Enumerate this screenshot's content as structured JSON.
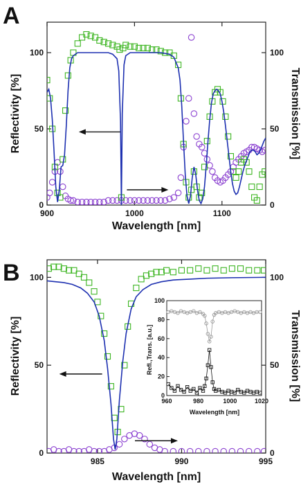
{
  "chart_data": [
    {
      "panel": "A",
      "type": "line",
      "xlabel": "Wavelength [nm]",
      "ylabel_left": "Reflectivity [%]",
      "ylabel_right": "Transmission [%]",
      "xlim": [
        900,
        1150
      ],
      "ylim": [
        0,
        120
      ],
      "xticks": [
        900,
        1000,
        1100
      ],
      "yticks_left": [
        0,
        50,
        100
      ],
      "yticks_right": [
        0,
        50,
        100
      ],
      "colors": {
        "reflectivity_measured": "#3cb521",
        "transmission_measured": "#8a3fd0",
        "reflectivity_simulated": "#1c2fb0"
      },
      "series": [
        {
          "role": "reflectivity_measured",
          "marker": "square",
          "x": [
            900,
            903,
            906,
            909,
            912,
            915,
            918,
            921,
            924,
            927,
            930,
            935,
            940,
            945,
            950,
            955,
            960,
            965,
            970,
            975,
            980,
            983,
            985,
            987,
            990,
            995,
            1000,
            1005,
            1010,
            1015,
            1020,
            1025,
            1030,
            1035,
            1040,
            1045,
            1050,
            1053,
            1056,
            1059,
            1062,
            1065,
            1068,
            1071,
            1074,
            1077,
            1080,
            1083,
            1086,
            1089,
            1092,
            1095,
            1098,
            1101,
            1104,
            1107,
            1110,
            1113,
            1116,
            1119,
            1122,
            1125,
            1128,
            1131,
            1134,
            1137,
            1140,
            1143,
            1146,
            1149
          ],
          "y": [
            82,
            70,
            50,
            25,
            8,
            5,
            30,
            62,
            85,
            95,
            100,
            106,
            110,
            112,
            111,
            110,
            108,
            107,
            106,
            105,
            104,
            102,
            5,
            103,
            105,
            104,
            104,
            103,
            103,
            103,
            102,
            102,
            101,
            100,
            100,
            98,
            92,
            70,
            40,
            15,
            5,
            10,
            22,
            12,
            5,
            8,
            25,
            42,
            58,
            68,
            74,
            76,
            74,
            68,
            58,
            45,
            32,
            22,
            18,
            22,
            28,
            30,
            28,
            22,
            12,
            5,
            3,
            12,
            20,
            22
          ]
        },
        {
          "role": "transmission_measured",
          "marker": "circle",
          "x": [
            900,
            903,
            906,
            909,
            912,
            915,
            918,
            921,
            924,
            927,
            930,
            935,
            940,
            945,
            950,
            955,
            960,
            965,
            970,
            975,
            980,
            985,
            990,
            995,
            1000,
            1005,
            1010,
            1015,
            1020,
            1025,
            1030,
            1035,
            1040,
            1045,
            1050,
            1053,
            1056,
            1059,
            1062,
            1065,
            1068,
            1071,
            1074,
            1077,
            1080,
            1083,
            1086,
            1089,
            1092,
            1095,
            1098,
            1101,
            1104,
            1107,
            1110,
            1113,
            1116,
            1119,
            1122,
            1125,
            1128,
            1131,
            1134,
            1137,
            1140,
            1143,
            1146,
            1149
          ],
          "y": [
            5,
            8,
            15,
            22,
            28,
            22,
            12,
            6,
            4,
            3,
            3,
            2,
            2,
            2,
            2,
            2,
            2,
            2,
            3,
            3,
            3,
            3,
            3,
            3,
            3,
            3,
            3,
            3,
            3,
            3,
            3,
            3,
            4,
            5,
            8,
            18,
            38,
            55,
            70,
            110,
            60,
            45,
            40,
            38,
            34,
            30,
            26,
            22,
            18,
            16,
            15,
            16,
            18,
            20,
            22,
            25,
            28,
            30,
            32,
            34,
            35,
            36,
            38,
            38,
            37,
            36,
            35,
            36
          ]
        },
        {
          "role": "reflectivity_simulated",
          "marker": "line",
          "x": [
            900,
            902,
            904,
            906,
            908,
            910,
            912,
            914,
            916,
            918,
            920,
            922,
            924,
            926,
            928,
            930,
            935,
            940,
            950,
            960,
            970,
            975,
            980,
            982,
            984,
            985,
            986,
            988,
            990,
            995,
            1000,
            1010,
            1020,
            1030,
            1040,
            1045,
            1050,
            1052,
            1054,
            1056,
            1058,
            1060,
            1062,
            1064,
            1066,
            1068,
            1070,
            1072,
            1074,
            1076,
            1078,
            1080,
            1082,
            1084,
            1086,
            1088,
            1090,
            1092,
            1094,
            1096,
            1098,
            1100,
            1102,
            1104,
            1106,
            1108,
            1110,
            1112,
            1114,
            1116,
            1118,
            1120,
            1122,
            1124,
            1126,
            1128,
            1130,
            1132,
            1134,
            1136,
            1138,
            1140,
            1142,
            1144,
            1146,
            1148,
            1150
          ],
          "y": [
            74,
            76,
            70,
            56,
            35,
            12,
            2,
            10,
            25,
            26,
            33,
            52,
            75,
            90,
            96,
            98,
            100,
            100,
            100,
            100,
            100,
            99,
            96,
            88,
            55,
            0,
            60,
            92,
            98,
            100,
            100,
            100,
            100,
            100,
            99,
            97,
            90,
            82,
            65,
            42,
            20,
            6,
            1,
            6,
            18,
            25,
            20,
            10,
            3,
            1,
            4,
            12,
            26,
            42,
            56,
            67,
            73,
            75,
            76,
            75,
            73,
            68,
            61,
            52,
            42,
            32,
            22,
            14,
            9,
            7,
            8,
            12,
            17,
            22,
            26,
            29,
            32,
            35,
            36,
            36,
            35,
            33,
            34,
            36,
            39,
            42,
            44
          ]
        }
      ],
      "annotations": [
        {
          "type": "arrow",
          "direction": "left",
          "points_to": "Reflectivity [%]",
          "at": [
            960,
            48
          ]
        },
        {
          "type": "arrow",
          "direction": "right",
          "points_to": "Transmission [%]",
          "at": [
            1015,
            10
          ]
        }
      ]
    },
    {
      "panel": "B",
      "type": "line",
      "xlabel": "Wavelength [nm]",
      "ylabel_left": "Reflectivity [%]",
      "ylabel_right": "Transmission [%]",
      "xlim": [
        982,
        995
      ],
      "ylim": [
        0,
        110
      ],
      "xticks": [
        985,
        990,
        995
      ],
      "yticks_left": [
        0,
        50,
        100
      ],
      "yticks_right": [
        0,
        50,
        100
      ],
      "colors": {
        "reflectivity_measured": "#3cb521",
        "transmission_measured": "#8a3fd0",
        "reflectivity_simulated": "#1c2fb0"
      },
      "series": [
        {
          "role": "reflectivity_measured",
          "marker": "square",
          "x": [
            982.1,
            982.4,
            982.7,
            983.0,
            983.3,
            983.6,
            983.9,
            984.2,
            984.5,
            984.8,
            985.0,
            985.2,
            985.4,
            985.6,
            985.8,
            986.0,
            986.2,
            986.4,
            986.6,
            986.8,
            987.0,
            987.3,
            987.6,
            987.9,
            988.2,
            988.5,
            988.8,
            989.1,
            989.5,
            990.0,
            990.5,
            991.0,
            991.5,
            992.0,
            992.5,
            993.0,
            993.5,
            994.0,
            994.5,
            994.9
          ],
          "y": [
            105,
            106,
            106,
            105,
            104,
            104,
            102,
            100,
            97,
            92,
            86,
            78,
            68,
            55,
            38,
            20,
            12,
            25,
            50,
            72,
            85,
            94,
            99,
            101,
            102,
            103,
            103,
            104,
            103,
            104,
            104,
            105,
            104,
            105,
            104,
            105,
            105,
            104,
            104,
            104
          ]
        },
        {
          "role": "transmission_measured",
          "marker": "circle",
          "x": [
            982.1,
            982.4,
            982.7,
            983.0,
            983.3,
            983.6,
            983.9,
            984.2,
            984.5,
            984.8,
            985.1,
            985.4,
            985.7,
            986.0,
            986.3,
            986.6,
            986.9,
            987.2,
            987.5,
            987.8,
            988.1,
            988.4,
            988.7,
            989.0,
            989.5,
            990.0,
            990.5,
            991.0,
            991.5,
            992.0,
            992.5,
            993.0,
            993.5,
            994.0,
            994.5,
            994.9
          ],
          "y": [
            1,
            2,
            1,
            1,
            2,
            1,
            1,
            1,
            2,
            1,
            1,
            1,
            2,
            3,
            5,
            8,
            10,
            11,
            10,
            8,
            5,
            3,
            2,
            1,
            1,
            1,
            1,
            1,
            1,
            1,
            1,
            1,
            1,
            1,
            1,
            1
          ]
        },
        {
          "role": "reflectivity_simulated",
          "marker": "line",
          "x": [
            982.0,
            982.5,
            983.0,
            983.5,
            984.0,
            984.4,
            984.8,
            985.1,
            985.4,
            985.6,
            985.8,
            985.95,
            986.05,
            986.15,
            986.3,
            986.5,
            986.7,
            987.0,
            987.3,
            987.7,
            988.2,
            988.8,
            989.5,
            990.5,
            991.5,
            993.0,
            995.0
          ],
          "y": [
            98,
            97.5,
            97,
            96,
            94,
            91,
            86,
            78,
            64,
            48,
            28,
            8,
            2,
            8,
            30,
            52,
            68,
            82,
            89,
            93,
            96,
            97.5,
            98.5,
            99,
            99.5,
            99.8,
            100
          ]
        }
      ],
      "annotations": [
        {
          "type": "arrow",
          "direction": "left",
          "points_to": "Reflectivity [%]",
          "at": [
            984,
            45
          ]
        },
        {
          "type": "arrow",
          "direction": "right",
          "points_to": "Transmission [%]",
          "at": [
            988.5,
            7
          ]
        }
      ],
      "inset": {
        "type": "scatter",
        "xlabel": "Wavelength [nm]",
        "ylabel": "Refl.,Trans. [a.u.]",
        "xlim": [
          960,
          1020
        ],
        "ylim": [
          0,
          100
        ],
        "xticks": [
          960,
          980,
          1000,
          1020
        ],
        "yticks": [
          0,
          20,
          40,
          60,
          80,
          100
        ],
        "series": [
          {
            "role": "reflection",
            "marker": "circle",
            "color": "#9a9a9a",
            "x": [
              961,
              963,
              965,
              967,
              969,
              971,
              973,
              975,
              977,
              979,
              981,
              983,
              984,
              985,
              986,
              987,
              988,
              989,
              990,
              991,
              993,
              995,
              997,
              999,
              1001,
              1003,
              1005,
              1007,
              1009,
              1011,
              1013,
              1015,
              1017,
              1019
            ],
            "y": [
              88,
              89,
              88,
              87,
              89,
              88,
              87,
              88,
              89,
              87,
              88,
              86,
              84,
              76,
              65,
              57,
              62,
              78,
              85,
              87,
              88,
              87,
              88,
              87,
              88,
              89,
              88,
              87,
              88,
              87,
              88,
              87,
              88,
              88
            ]
          },
          {
            "role": "transmission",
            "marker": "square",
            "color": "#111111",
            "x": [
              961,
              963,
              965,
              967,
              969,
              971,
              973,
              975,
              977,
              979,
              981,
              983,
              984,
              985,
              986,
              987,
              988,
              989,
              990,
              991,
              993,
              995,
              997,
              999,
              1001,
              1003,
              1005,
              1007,
              1009,
              1011,
              1013,
              1015,
              1017,
              1019
            ],
            "y": [
              12,
              8,
              5,
              10,
              6,
              4,
              9,
              5,
              7,
              3,
              8,
              5,
              10,
              18,
              32,
              48,
              30,
              14,
              7,
              5,
              6,
              4,
              3,
              5,
              4,
              3,
              6,
              4,
              3,
              5,
              4,
              3,
              4,
              3
            ]
          }
        ]
      }
    }
  ]
}
